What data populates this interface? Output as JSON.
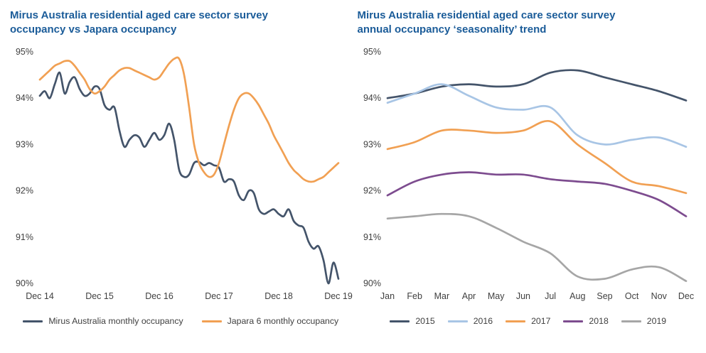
{
  "styles": {
    "title_color": "#1B5C99",
    "axis_text_color": "#404040",
    "background_color": "#FFFFFF"
  },
  "chart_data": [
    {
      "type": "line",
      "title": "Mirus Australia residential aged care sector survey occupancy vs Japara occupancy",
      "ylim": [
        90,
        95
      ],
      "y_ticks": [
        "90%",
        "91%",
        "92%",
        "93%",
        "94%",
        "95%"
      ],
      "x_tick_labels": [
        "Dec 14",
        "Dec 15",
        "Dec 16",
        "Dec 17",
        "Dec 18",
        "Dec 19"
      ],
      "grid": false,
      "legend_position": "bottom",
      "series": [
        {
          "name": "Mirus Australia monthly occupancy",
          "color": "#44546A",
          "values": [
            94.05,
            94.15,
            94.0,
            94.3,
            94.55,
            94.1,
            94.35,
            94.45,
            94.2,
            94.05,
            94.1,
            94.25,
            94.2,
            93.85,
            93.75,
            93.8,
            93.3,
            92.95,
            93.1,
            93.2,
            93.15,
            92.95,
            93.1,
            93.25,
            93.1,
            93.2,
            93.45,
            93.1,
            92.45,
            92.3,
            92.35,
            92.6,
            92.62,
            92.55,
            92.6,
            92.55,
            92.5,
            92.2,
            92.25,
            92.2,
            91.9,
            91.8,
            92.0,
            91.95,
            91.6,
            91.5,
            91.55,
            91.6,
            91.5,
            91.45,
            91.6,
            91.35,
            91.25,
            91.2,
            90.9,
            90.75,
            90.8,
            90.5,
            90.0,
            90.45,
            90.1
          ]
        },
        {
          "name": "Japara 6 monthly occupancy",
          "color": "#F1A053",
          "values": [
            94.4,
            94.5,
            94.6,
            94.7,
            94.75,
            94.8,
            94.8,
            94.7,
            94.55,
            94.4,
            94.2,
            94.1,
            94.15,
            94.25,
            94.4,
            94.5,
            94.6,
            94.65,
            94.65,
            94.6,
            94.55,
            94.5,
            94.45,
            94.4,
            94.45,
            94.6,
            94.75,
            94.85,
            94.85,
            94.5,
            93.8,
            93.0,
            92.6,
            92.4,
            92.3,
            92.35,
            92.6,
            93.0,
            93.4,
            93.75,
            94.0,
            94.1,
            94.1,
            94.0,
            93.85,
            93.65,
            93.45,
            93.2,
            93.0,
            92.8,
            92.6,
            92.45,
            92.35,
            92.25,
            92.2,
            92.2,
            92.25,
            92.3,
            92.4,
            92.5,
            92.6
          ]
        }
      ]
    },
    {
      "type": "line",
      "title": "Mirus Australia residential aged care sector survey annual occupancy ‘seasonality’ trend",
      "ylim": [
        90,
        95
      ],
      "y_ticks": [
        "90%",
        "91%",
        "92%",
        "93%",
        "94%",
        "95%"
      ],
      "x_tick_labels": [
        "Jan",
        "Feb",
        "Mar",
        "Apr",
        "May",
        "Jun",
        "Jul",
        "Aug",
        "Sep",
        "Oct",
        "Nov",
        "Dec"
      ],
      "grid": false,
      "legend_position": "bottom",
      "series": [
        {
          "name": "2015",
          "color": "#44546A",
          "values": [
            94.0,
            94.1,
            94.25,
            94.3,
            94.25,
            94.3,
            94.55,
            94.6,
            94.45,
            94.3,
            94.15,
            93.95
          ]
        },
        {
          "name": "2016",
          "color": "#A8C5E5",
          "values": [
            93.9,
            94.1,
            94.3,
            94.05,
            93.8,
            93.75,
            93.8,
            93.2,
            93.0,
            93.1,
            93.15,
            92.95
          ]
        },
        {
          "name": "2017",
          "color": "#F1A053",
          "values": [
            92.9,
            93.05,
            93.3,
            93.3,
            93.25,
            93.3,
            93.5,
            93.0,
            92.6,
            92.2,
            92.1,
            91.95
          ]
        },
        {
          "name": "2018",
          "color": "#7D4C8F",
          "values": [
            91.9,
            92.2,
            92.35,
            92.4,
            92.35,
            92.35,
            92.25,
            92.2,
            92.15,
            92.0,
            91.8,
            91.45
          ]
        },
        {
          "name": "2019",
          "color": "#A6A6A6",
          "values": [
            91.4,
            91.45,
            91.5,
            91.45,
            91.2,
            90.9,
            90.65,
            90.15,
            90.1,
            90.3,
            90.35,
            90.05
          ]
        }
      ]
    }
  ]
}
